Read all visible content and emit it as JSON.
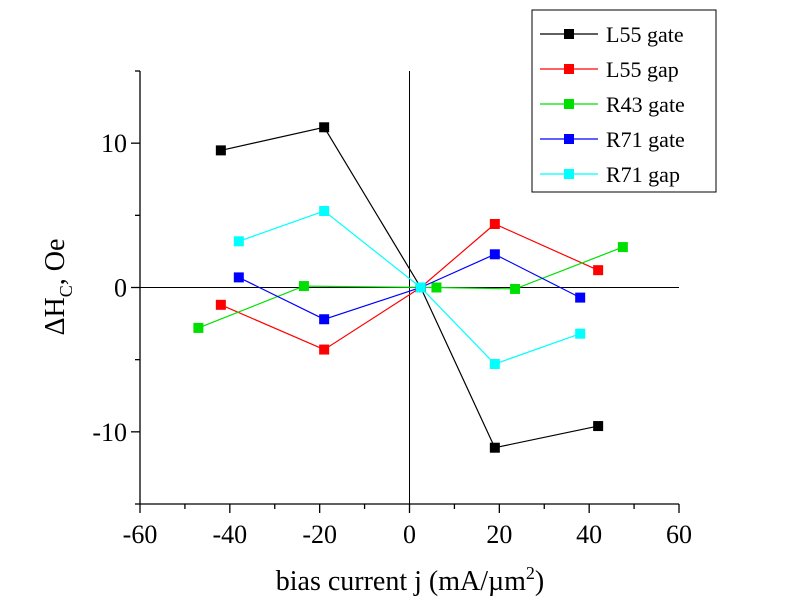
{
  "chart_data": {
    "type": "line",
    "xlabel": "bias current j (mA/µm",
    "xlabel_sup": "2",
    "xlabel_suffix": ")",
    "ylabel": "ΔH",
    "ylabel_sub": "C",
    "ylabel_suffix": ", Oe",
    "xlim": [
      -60,
      60
    ],
    "ylim": [
      -15,
      15
    ],
    "x_ticks": [
      -60,
      -40,
      -20,
      0,
      20,
      40,
      60
    ],
    "y_ticks": [
      -10,
      0,
      10
    ],
    "legend_position": "top-right",
    "zero_lines": true,
    "series": [
      {
        "name": "L55 gate",
        "color": "#000000",
        "points": [
          [
            -42,
            9.5
          ],
          [
            -19,
            11.1
          ],
          [
            2.5,
            0
          ],
          [
            19,
            -11.1
          ],
          [
            42,
            -9.6
          ]
        ]
      },
      {
        "name": "L55 gap",
        "color": "#ff0000",
        "points": [
          [
            -42,
            -1.2
          ],
          [
            -19,
            -4.3
          ],
          [
            2.5,
            0
          ],
          [
            19,
            4.4
          ],
          [
            42,
            1.2
          ]
        ]
      },
      {
        "name": "R43 gate",
        "color": "#00e000",
        "points": [
          [
            -47,
            -2.8
          ],
          [
            -23.5,
            0.1
          ],
          [
            6,
            0
          ],
          [
            23.5,
            -0.1
          ],
          [
            47.5,
            2.8
          ]
        ]
      },
      {
        "name": "R71 gate",
        "color": "#0000ff",
        "points": [
          [
            -38,
            0.7
          ],
          [
            -19,
            -2.2
          ],
          [
            2.5,
            0
          ],
          [
            19,
            2.3
          ],
          [
            38,
            -0.7
          ]
        ]
      },
      {
        "name": "R71 gap",
        "color": "#00ffff",
        "points": [
          [
            -38,
            3.2
          ],
          [
            -19,
            5.3
          ],
          [
            2.5,
            0
          ],
          [
            19,
            -5.3
          ],
          [
            38,
            -3.2
          ]
        ]
      }
    ]
  }
}
